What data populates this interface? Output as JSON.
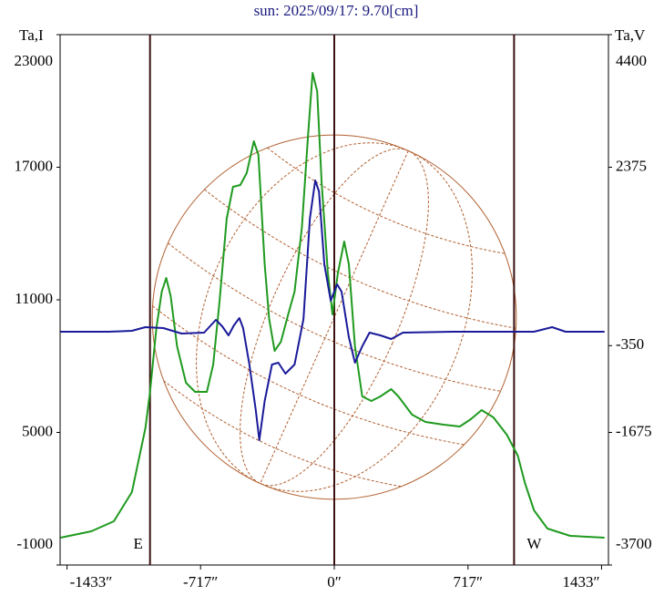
{
  "chart_data": {
    "type": "line",
    "title": "sun: 2025/09/17: 9.70[cm]",
    "y_label": "Ta,I",
    "y2_label": "Ta,V",
    "xlim": [
      -1470,
      1470
    ],
    "xticks": [
      {
        "value": -1433,
        "label": "-1433″"
      },
      {
        "value": -717,
        "label": "-717″"
      },
      {
        "value": 0,
        "label": "0″"
      },
      {
        "value": 717,
        "label": "717″"
      },
      {
        "value": 1433,
        "label": "1433″"
      }
    ],
    "ylim": [
      -1000,
      23000
    ],
    "yticks": [
      -1000,
      5000,
      11000,
      17000,
      23000
    ],
    "y2lim": [
      -3700,
      4400
    ],
    "y2ticks": [
      -3700,
      -1675,
      -350,
      2375,
      4400
    ],
    "limb_lines": [
      -988,
      0,
      964
    ],
    "limb_labels": [
      "E",
      "W"
    ],
    "series": [
      {
        "name": "Ta,I",
        "color": "#1f9a1f",
        "x": [
          -1468,
          -1303,
          -1182,
          -1085,
          -1013,
          -988,
          -954,
          -925,
          -901,
          -877,
          -843,
          -795,
          -746,
          -683,
          -649,
          -615,
          -577,
          -543,
          -504,
          -470,
          -431,
          -407,
          -373,
          -349,
          -320,
          -286,
          -247,
          -213,
          -174,
          -141,
          -116,
          -92,
          -68,
          -34,
          -10,
          19,
          53,
          78,
          111,
          150,
          199,
          247,
          305,
          344,
          417,
          489,
          586,
          673,
          732,
          790,
          853,
          925,
          984,
          1022,
          1071,
          1143,
          1265,
          1449
        ],
        "values": [
          237,
          526,
          980,
          2299,
          5186,
          6836,
          9722,
          11372,
          11991,
          11166,
          8898,
          7248,
          6836,
          6836,
          8073,
          10960,
          14671,
          16115,
          16197,
          16733,
          18177,
          17558,
          12609,
          10135,
          8691,
          9104,
          10341,
          11372,
          14259,
          18383,
          21270,
          20445,
          16321,
          12197,
          10341,
          12197,
          13640,
          12609,
          8898,
          6629,
          6423,
          6629,
          6959,
          6629,
          5805,
          5475,
          5351,
          5268,
          5598,
          6011,
          5681,
          4897,
          3949,
          2712,
          1474,
          650,
          320,
          237
        ]
      },
      {
        "name": "Ta,V",
        "color": "#1a1a9a",
        "axis": "y2",
        "x": [
          -1468,
          -1206,
          -1085,
          -1013,
          -916,
          -819,
          -698,
          -635,
          -601,
          -567,
          -538,
          -509,
          -489,
          -455,
          -421,
          -402,
          -373,
          -334,
          -300,
          -262,
          -213,
          -165,
          -131,
          -102,
          -82,
          -53,
          -19,
          15,
          39,
          78,
          111,
          150,
          189,
          247,
          305,
          368,
          635,
          1071,
          1168,
          1240,
          1449
        ],
        "values": [
          -137,
          -137,
          -123,
          -67,
          -81,
          -165,
          -151,
          44,
          -53,
          -193,
          -40,
          72,
          -81,
          -638,
          -1334,
          -1793,
          -1195,
          -638,
          -610,
          -777,
          -638,
          58,
          1589,
          2173,
          2006,
          893,
          336,
          587,
          475,
          -220,
          -610,
          -360,
          -151,
          -193,
          -248,
          -151,
          -137,
          -137,
          -67,
          -137,
          -137
        ]
      }
    ]
  }
}
